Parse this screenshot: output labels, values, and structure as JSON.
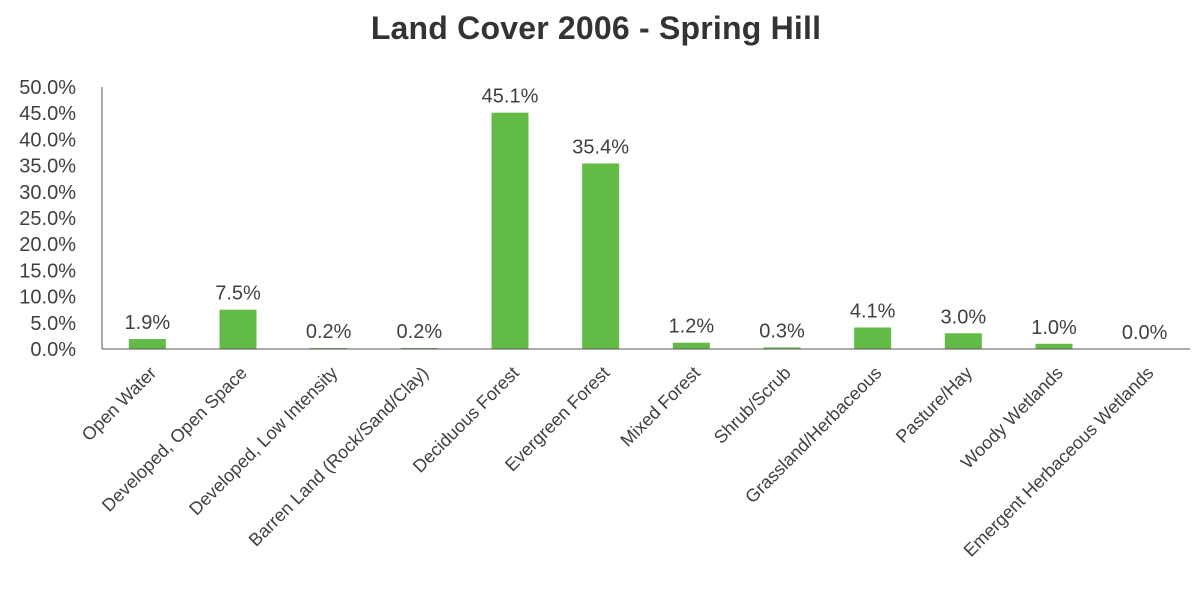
{
  "chart_data": {
    "type": "bar",
    "title": "Land Cover 2006 - Spring Hill",
    "categories": [
      "Open Water",
      "Developed, Open Space",
      "Developed, Low Intensity",
      "Barren Land (Rock/Sand/Clay)",
      "Deciduous Forest",
      "Evergreen Forest",
      "Mixed Forest",
      "Shrub/Scrub",
      "Grassland/Herbaceous",
      "Pasture/Hay",
      "Woody Wetlands",
      "Emergent Herbaceous Wetlands"
    ],
    "values": [
      1.9,
      7.5,
      0.2,
      0.2,
      45.1,
      35.4,
      1.2,
      0.3,
      4.1,
      3.0,
      1.0,
      0.0
    ],
    "data_labels": [
      "1.9%",
      "7.5%",
      "0.2%",
      "0.2%",
      "45.1%",
      "35.4%",
      "1.2%",
      "0.3%",
      "4.1%",
      "3.0%",
      "1.0%",
      "0.0%"
    ],
    "y_ticks": [
      "0.0%",
      "5.0%",
      "10.0%",
      "15.0%",
      "20.0%",
      "25.0%",
      "30.0%",
      "35.0%",
      "40.0%",
      "45.0%",
      "50.0%"
    ],
    "ylim": [
      0,
      50
    ],
    "xlabel": "",
    "ylabel": "",
    "grid": false,
    "legend": "none",
    "bar_color": "#62bb46",
    "axis_color": "#595959"
  }
}
